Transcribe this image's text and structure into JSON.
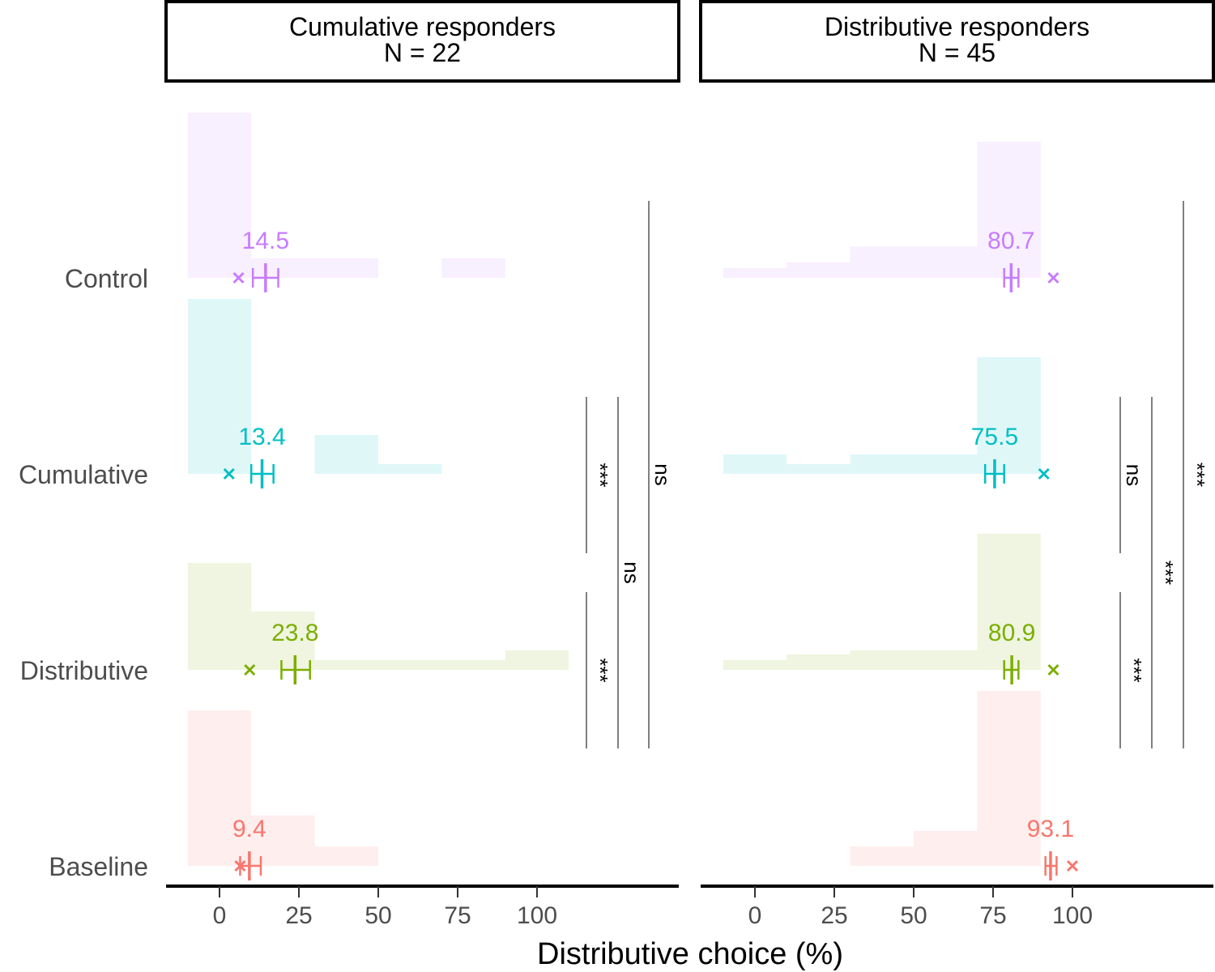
{
  "chart_data": {
    "type": "histogram-with-means",
    "xlabel": "Distributive choice (%)",
    "x_ticks": [
      0,
      25,
      50,
      75,
      100
    ],
    "xlim": [
      -10,
      110
    ],
    "conditions": [
      "Control",
      "Cumulative",
      "Distributive",
      "Baseline"
    ],
    "colors": {
      "Control": "#c77cff",
      "Cumulative": "#00bfc4",
      "Distributive": "#7cae00",
      "Baseline": "#f8766d"
    },
    "bin_edges": [
      -10,
      10,
      30,
      50,
      70,
      90,
      110
    ],
    "panels": [
      {
        "title": "Cumulative responders",
        "subtitle": "N = 22",
        "groups": [
          {
            "condition": "Control",
            "mean": 14.5,
            "mean_label": "14.5",
            "ci": [
              10.5,
              18.5
            ],
            "median": 6,
            "hist": [
              0.85,
              0.1,
              0.1,
              0.0,
              0.1,
              0.0
            ]
          },
          {
            "condition": "Cumulative",
            "mean": 13.4,
            "mean_label": "13.4",
            "ci": [
              10.0,
              17.0
            ],
            "median": 3,
            "hist": [
              0.9,
              0.0,
              0.2,
              0.05,
              0.0,
              0.0
            ]
          },
          {
            "condition": "Distributive",
            "mean": 23.8,
            "mean_label": "23.8",
            "ci": [
              19.5,
              28.5
            ],
            "median": 9.5,
            "hist": [
              0.55,
              0.3,
              0.05,
              0.05,
              0.05,
              0.1
            ]
          },
          {
            "condition": "Baseline",
            "mean": 9.4,
            "mean_label": "9.4",
            "ci": [
              6.5,
              13.0
            ],
            "median": 6.5,
            "hist": [
              0.8,
              0.26,
              0.1,
              0.0,
              0.0,
              0.0
            ]
          }
        ],
        "brackets": [
          {
            "from": "Cumulative",
            "to": "Distributive",
            "label": "***"
          },
          {
            "from": "Cumulative",
            "to": "Baseline",
            "label": "ns"
          },
          {
            "from": "Control",
            "to": "Baseline",
            "label": "ns"
          },
          {
            "from": "Distributive",
            "to": "Baseline",
            "label": "***"
          }
        ]
      },
      {
        "title": "Distributive responders",
        "subtitle": "N = 45",
        "groups": [
          {
            "condition": "Control",
            "mean": 80.7,
            "mean_label": "80.7",
            "ci": [
              78.5,
              83.0
            ],
            "median": 94,
            "hist": [
              0.05,
              0.08,
              0.16,
              0.16,
              0.7,
              0.0
            ]
          },
          {
            "condition": "Cumulative",
            "mean": 75.5,
            "mean_label": "75.5",
            "ci": [
              72.5,
              78.5
            ],
            "median": 91,
            "hist": [
              0.1,
              0.05,
              0.1,
              0.1,
              0.6,
              0.0
            ]
          },
          {
            "condition": "Distributive",
            "mean": 80.9,
            "mean_label": "80.9",
            "ci": [
              78.5,
              83.0
            ],
            "median": 94,
            "hist": [
              0.05,
              0.08,
              0.1,
              0.1,
              0.7,
              0.0
            ]
          },
          {
            "condition": "Baseline",
            "mean": 93.1,
            "mean_label": "93.1",
            "ci": [
              91.5,
              95.0
            ],
            "median": 100,
            "hist": [
              0.0,
              0.0,
              0.1,
              0.18,
              0.9,
              0.0
            ]
          }
        ],
        "brackets": [
          {
            "from": "Cumulative",
            "to": "Distributive",
            "label": "ns"
          },
          {
            "from": "Cumulative",
            "to": "Baseline",
            "label": "***"
          },
          {
            "from": "Control",
            "to": "Baseline",
            "label": "***"
          },
          {
            "from": "Distributive",
            "to": "Baseline",
            "label": "***"
          }
        ]
      }
    ]
  }
}
